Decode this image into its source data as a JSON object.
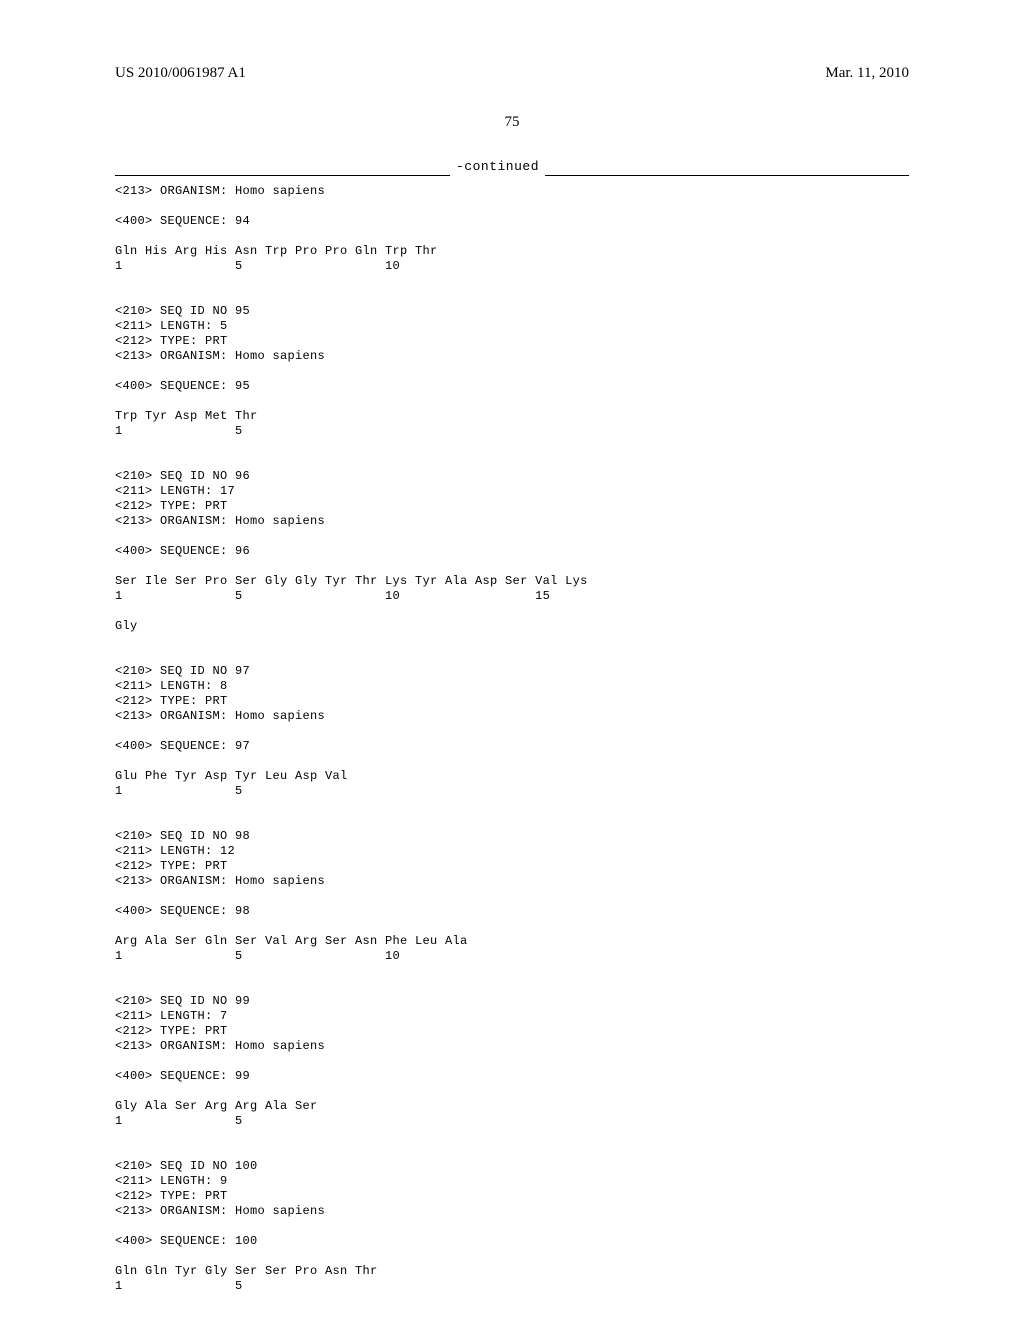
{
  "header": {
    "pub_number": "US 2010/0061987 A1",
    "date": "Mar. 11, 2010"
  },
  "page_number": "75",
  "continued": "-continued",
  "entries": [
    {
      "tag": "<213> ORGANISM: Homo sapiens"
    },
    {
      "blank": true
    },
    {
      "tag": "<400> SEQUENCE: 94"
    },
    {
      "blank": true
    },
    {
      "seq": "Gln His Arg His Asn Trp Pro Pro Gln Trp Thr",
      "pos": "1               5                   10"
    },
    {
      "blank": true
    },
    {
      "blank": true
    },
    {
      "tag": "<210> SEQ ID NO 95"
    },
    {
      "tag": "<211> LENGTH: 5"
    },
    {
      "tag": "<212> TYPE: PRT"
    },
    {
      "tag": "<213> ORGANISM: Homo sapiens"
    },
    {
      "blank": true
    },
    {
      "tag": "<400> SEQUENCE: 95"
    },
    {
      "blank": true
    },
    {
      "seq": "Trp Tyr Asp Met Thr",
      "pos": "1               5"
    },
    {
      "blank": true
    },
    {
      "blank": true
    },
    {
      "tag": "<210> SEQ ID NO 96"
    },
    {
      "tag": "<211> LENGTH: 17"
    },
    {
      "tag": "<212> TYPE: PRT"
    },
    {
      "tag": "<213> ORGANISM: Homo sapiens"
    },
    {
      "blank": true
    },
    {
      "tag": "<400> SEQUENCE: 96"
    },
    {
      "blank": true
    },
    {
      "seq": "Ser Ile Ser Pro Ser Gly Gly Tyr Thr Lys Tyr Ala Asp Ser Val Lys",
      "pos": "1               5                   10                  15"
    },
    {
      "blank": true
    },
    {
      "seq": "Gly",
      "pos": ""
    },
    {
      "blank": true
    },
    {
      "blank": true
    },
    {
      "tag": "<210> SEQ ID NO 97"
    },
    {
      "tag": "<211> LENGTH: 8"
    },
    {
      "tag": "<212> TYPE: PRT"
    },
    {
      "tag": "<213> ORGANISM: Homo sapiens"
    },
    {
      "blank": true
    },
    {
      "tag": "<400> SEQUENCE: 97"
    },
    {
      "blank": true
    },
    {
      "seq": "Glu Phe Tyr Asp Tyr Leu Asp Val",
      "pos": "1               5"
    },
    {
      "blank": true
    },
    {
      "blank": true
    },
    {
      "tag": "<210> SEQ ID NO 98"
    },
    {
      "tag": "<211> LENGTH: 12"
    },
    {
      "tag": "<212> TYPE: PRT"
    },
    {
      "tag": "<213> ORGANISM: Homo sapiens"
    },
    {
      "blank": true
    },
    {
      "tag": "<400> SEQUENCE: 98"
    },
    {
      "blank": true
    },
    {
      "seq": "Arg Ala Ser Gln Ser Val Arg Ser Asn Phe Leu Ala",
      "pos": "1               5                   10"
    },
    {
      "blank": true
    },
    {
      "blank": true
    },
    {
      "tag": "<210> SEQ ID NO 99"
    },
    {
      "tag": "<211> LENGTH: 7"
    },
    {
      "tag": "<212> TYPE: PRT"
    },
    {
      "tag": "<213> ORGANISM: Homo sapiens"
    },
    {
      "blank": true
    },
    {
      "tag": "<400> SEQUENCE: 99"
    },
    {
      "blank": true
    },
    {
      "seq": "Gly Ala Ser Arg Arg Ala Ser",
      "pos": "1               5"
    },
    {
      "blank": true
    },
    {
      "blank": true
    },
    {
      "tag": "<210> SEQ ID NO 100"
    },
    {
      "tag": "<211> LENGTH: 9"
    },
    {
      "tag": "<212> TYPE: PRT"
    },
    {
      "tag": "<213> ORGANISM: Homo sapiens"
    },
    {
      "blank": true
    },
    {
      "tag": "<400> SEQUENCE: 100"
    },
    {
      "blank": true
    },
    {
      "seq": "Gln Gln Tyr Gly Ser Ser Pro Asn Thr",
      "pos": "1               5"
    }
  ]
}
